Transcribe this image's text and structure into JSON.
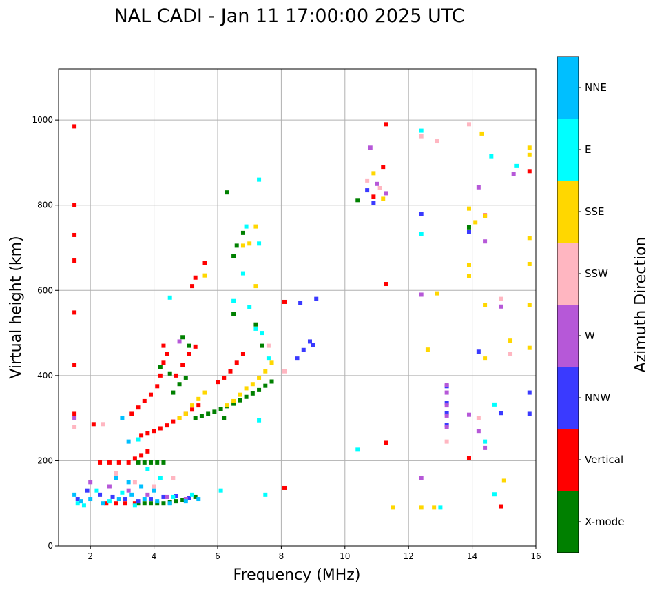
{
  "chart_data": {
    "type": "scatter",
    "title": "NAL CADI - Jan 11 17:00:00 2025 UTC",
    "xlabel": "Frequency (MHz)",
    "ylabel": "Virtual height (km)",
    "xlim": [
      1,
      16
    ],
    "ylim": [
      0,
      1120
    ],
    "xticks": [
      2,
      4,
      6,
      8,
      10,
      12,
      14,
      16
    ],
    "yticks": [
      0,
      200,
      400,
      600,
      800,
      1000
    ],
    "grid": true,
    "colorbar": {
      "title": "Azimuth Direction",
      "categories": [
        "X-mode",
        "Vertical",
        "NNW",
        "W",
        "SSW",
        "SSE",
        "E",
        "NNE"
      ],
      "colors": [
        "#008000",
        "#ff0000",
        "#3a3aff",
        "#b658d8",
        "#ffb6c1",
        "#ffd700",
        "#00ffff",
        "#00bfff"
      ]
    },
    "series": [
      {
        "name": "X-mode",
        "points": [
          [
            3.5,
            100
          ],
          [
            3.7,
            100
          ],
          [
            3.9,
            100
          ],
          [
            4.1,
            100
          ],
          [
            4.3,
            100
          ],
          [
            4.5,
            102
          ],
          [
            4.7,
            105
          ],
          [
            4.9,
            108
          ],
          [
            5.1,
            112
          ],
          [
            5.3,
            115
          ],
          [
            3.5,
            196
          ],
          [
            3.7,
            196
          ],
          [
            3.9,
            196
          ],
          [
            4.1,
            196
          ],
          [
            4.3,
            196
          ],
          [
            5.3,
            300
          ],
          [
            5.5,
            305
          ],
          [
            5.7,
            310
          ],
          [
            5.9,
            315
          ],
          [
            6.1,
            322
          ],
          [
            6.3,
            328
          ],
          [
            6.5,
            334
          ],
          [
            6.7,
            342
          ],
          [
            6.9,
            350
          ],
          [
            7.1,
            358
          ],
          [
            7.3,
            366
          ],
          [
            7.5,
            376
          ],
          [
            7.7,
            386
          ],
          [
            4.6,
            360
          ],
          [
            4.8,
            380
          ],
          [
            5.0,
            395
          ],
          [
            4.9,
            490
          ],
          [
            5.1,
            470
          ],
          [
            6.5,
            545
          ],
          [
            6.5,
            680
          ],
          [
            6.6,
            705
          ],
          [
            6.8,
            735
          ],
          [
            6.3,
            830
          ],
          [
            10.4,
            812
          ],
          [
            13.9,
            748
          ],
          [
            4.2,
            420
          ],
          [
            4.5,
            405
          ],
          [
            7.2,
            520
          ],
          [
            7.4,
            470
          ],
          [
            6.2,
            300
          ]
        ]
      },
      {
        "name": "Vertical",
        "points": [
          [
            1.5,
            985
          ],
          [
            1.5,
            800
          ],
          [
            1.5,
            730
          ],
          [
            1.5,
            670
          ],
          [
            1.5,
            548
          ],
          [
            1.5,
            425
          ],
          [
            1.5,
            310
          ],
          [
            2.1,
            286
          ],
          [
            2.3,
            196
          ],
          [
            2.6,
            196
          ],
          [
            2.9,
            196
          ],
          [
            3.2,
            196
          ],
          [
            3.4,
            205
          ],
          [
            3.6,
            213
          ],
          [
            3.8,
            222
          ],
          [
            2.5,
            100
          ],
          [
            2.8,
            100
          ],
          [
            3.1,
            100
          ],
          [
            3.4,
            100
          ],
          [
            3.6,
            260
          ],
          [
            3.8,
            265
          ],
          [
            4.0,
            270
          ],
          [
            4.2,
            276
          ],
          [
            4.4,
            283
          ],
          [
            4.6,
            292
          ],
          [
            4.8,
            300
          ],
          [
            5.0,
            310
          ],
          [
            5.2,
            320
          ],
          [
            5.4,
            330
          ],
          [
            3.3,
            310
          ],
          [
            3.5,
            325
          ],
          [
            3.7,
            340
          ],
          [
            3.9,
            355
          ],
          [
            4.1,
            375
          ],
          [
            4.2,
            400
          ],
          [
            4.3,
            430
          ],
          [
            4.4,
            450
          ],
          [
            4.3,
            470
          ],
          [
            4.7,
            400
          ],
          [
            4.9,
            425
          ],
          [
            5.1,
            450
          ],
          [
            5.3,
            468
          ],
          [
            6.0,
            385
          ],
          [
            6.2,
            395
          ],
          [
            6.4,
            410
          ],
          [
            6.6,
            430
          ],
          [
            6.8,
            450
          ],
          [
            5.2,
            610
          ],
          [
            5.3,
            630
          ],
          [
            5.6,
            665
          ],
          [
            8.1,
            573
          ],
          [
            8.1,
            136
          ],
          [
            11.3,
            990
          ],
          [
            11.2,
            890
          ],
          [
            10.9,
            820
          ],
          [
            11.3,
            615
          ],
          [
            11.3,
            242
          ],
          [
            14.4,
            776
          ],
          [
            13.9,
            206
          ],
          [
            14.9,
            93
          ],
          [
            15.8,
            880
          ]
        ]
      },
      {
        "name": "NNW",
        "points": [
          [
            1.6,
            110
          ],
          [
            1.9,
            130
          ],
          [
            2.3,
            120
          ],
          [
            2.7,
            115
          ],
          [
            3.1,
            110
          ],
          [
            3.5,
            105
          ],
          [
            3.9,
            110
          ],
          [
            4.3,
            115
          ],
          [
            4.7,
            118
          ],
          [
            5.1,
            112
          ],
          [
            8.5,
            440
          ],
          [
            8.7,
            460
          ],
          [
            8.9,
            480
          ],
          [
            9.0,
            472
          ],
          [
            8.6,
            570
          ],
          [
            9.1,
            580
          ],
          [
            10.7,
            835
          ],
          [
            10.9,
            805
          ],
          [
            12.4,
            780
          ],
          [
            13.2,
            375
          ],
          [
            13.2,
            335
          ],
          [
            13.2,
            312
          ],
          [
            13.2,
            284
          ],
          [
            14.2,
            456
          ],
          [
            13.9,
            738
          ],
          [
            14.9,
            312
          ],
          [
            15.8,
            360
          ],
          [
            15.8,
            310
          ]
        ]
      },
      {
        "name": "W",
        "points": [
          [
            1.5,
            300
          ],
          [
            2.0,
            150
          ],
          [
            2.6,
            140
          ],
          [
            3.2,
            130
          ],
          [
            3.8,
            120
          ],
          [
            4.4,
            115
          ],
          [
            5.0,
            110
          ],
          [
            4.8,
            480
          ],
          [
            10.8,
            935
          ],
          [
            11.0,
            850
          ],
          [
            11.3,
            828
          ],
          [
            12.4,
            590
          ],
          [
            12.4,
            160
          ],
          [
            13.2,
            378
          ],
          [
            13.2,
            360
          ],
          [
            13.2,
            330
          ],
          [
            13.2,
            306
          ],
          [
            13.2,
            280
          ],
          [
            14.2,
            842
          ],
          [
            14.4,
            715
          ],
          [
            14.4,
            230
          ],
          [
            14.2,
            270
          ],
          [
            14.9,
            562
          ],
          [
            15.3,
            873
          ],
          [
            13.9,
            308
          ]
        ]
      },
      {
        "name": "SSW",
        "points": [
          [
            1.5,
            280
          ],
          [
            2.4,
            286
          ],
          [
            2.8,
            170
          ],
          [
            3.4,
            150
          ],
          [
            4.0,
            140
          ],
          [
            4.6,
            160
          ],
          [
            10.7,
            858
          ],
          [
            11.1,
            840
          ],
          [
            12.4,
            962
          ],
          [
            12.9,
            950
          ],
          [
            14.2,
            300
          ],
          [
            13.9,
            990
          ],
          [
            14.9,
            580
          ],
          [
            15.2,
            450
          ],
          [
            13.2,
            245
          ],
          [
            8.1,
            410
          ],
          [
            7.6,
            470
          ]
        ]
      },
      {
        "name": "SSE",
        "points": [
          [
            4.8,
            300
          ],
          [
            5.0,
            310
          ],
          [
            5.2,
            330
          ],
          [
            5.4,
            345
          ],
          [
            5.6,
            360
          ],
          [
            6.3,
            330
          ],
          [
            6.5,
            340
          ],
          [
            6.7,
            355
          ],
          [
            6.9,
            370
          ],
          [
            7.1,
            380
          ],
          [
            7.3,
            395
          ],
          [
            7.5,
            410
          ],
          [
            7.7,
            430
          ],
          [
            5.6,
            635
          ],
          [
            7.2,
            610
          ],
          [
            7.2,
            750
          ],
          [
            6.8,
            705
          ],
          [
            7.0,
            710
          ],
          [
            10.9,
            875
          ],
          [
            11.2,
            815
          ],
          [
            12.6,
            461
          ],
          [
            12.9,
            593
          ],
          [
            12.4,
            90
          ],
          [
            12.8,
            90
          ],
          [
            13.9,
            792
          ],
          [
            13.9,
            660
          ],
          [
            13.9,
            633
          ],
          [
            14.3,
            968
          ],
          [
            14.4,
            775
          ],
          [
            14.4,
            565
          ],
          [
            14.4,
            440
          ],
          [
            15.0,
            153
          ],
          [
            15.2,
            482
          ],
          [
            15.8,
            935
          ],
          [
            15.8,
            918
          ],
          [
            15.8,
            723
          ],
          [
            15.8,
            662
          ],
          [
            15.8,
            565
          ],
          [
            15.8,
            465
          ],
          [
            14.1,
            760
          ],
          [
            11.5,
            90
          ]
        ]
      },
      {
        "name": "E",
        "points": [
          [
            1.6,
            100
          ],
          [
            1.8,
            95
          ],
          [
            2.2,
            130
          ],
          [
            2.6,
            105
          ],
          [
            3.0,
            125
          ],
          [
            3.4,
            95
          ],
          [
            3.8,
            180
          ],
          [
            4.2,
            160
          ],
          [
            4.6,
            115
          ],
          [
            5.2,
            120
          ],
          [
            6.1,
            130
          ],
          [
            6.5,
            575
          ],
          [
            6.8,
            640
          ],
          [
            7.0,
            560
          ],
          [
            7.2,
            510
          ],
          [
            7.4,
            500
          ],
          [
            7.6,
            440
          ],
          [
            6.9,
            750
          ],
          [
            7.3,
            860
          ],
          [
            7.3,
            710
          ],
          [
            7.3,
            295
          ],
          [
            7.5,
            120
          ],
          [
            10.4,
            226
          ],
          [
            12.4,
            975
          ],
          [
            12.4,
            732
          ],
          [
            13.0,
            90
          ],
          [
            14.4,
            245
          ],
          [
            14.6,
            915
          ],
          [
            14.7,
            332
          ],
          [
            14.7,
            121
          ],
          [
            15.4,
            892
          ],
          [
            4.5,
            583
          ],
          [
            3.5,
            250
          ]
        ]
      },
      {
        "name": "NNE",
        "points": [
          [
            1.5,
            120
          ],
          [
            1.7,
            105
          ],
          [
            2.0,
            110
          ],
          [
            2.4,
            100
          ],
          [
            2.9,
            110
          ],
          [
            3.3,
            120
          ],
          [
            3.7,
            110
          ],
          [
            4.1,
            105
          ],
          [
            4.5,
            100
          ],
          [
            5.0,
            105
          ],
          [
            5.4,
            110
          ],
          [
            2.8,
            160
          ],
          [
            3.2,
            150
          ],
          [
            3.6,
            140
          ],
          [
            4.0,
            130
          ],
          [
            3.0,
            300
          ],
          [
            3.2,
            245
          ]
        ]
      }
    ]
  }
}
